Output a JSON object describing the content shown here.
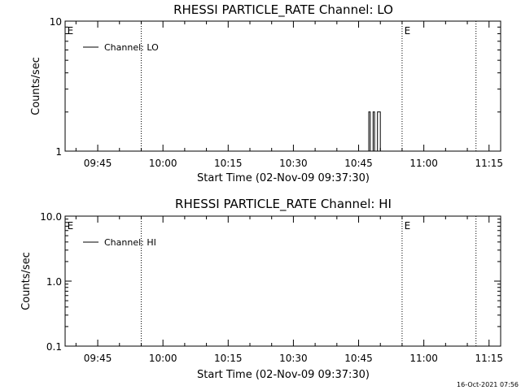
{
  "footer": {
    "timestamp": "16-Oct-2021 07:56"
  },
  "style": {
    "line_color": "#000000",
    "background": "#ffffff"
  },
  "chart_data": [
    {
      "type": "line",
      "title": "RHESSI PARTICLE_RATE Channel: LO",
      "xlabel": "Start Time (02-Nov-09 09:37:30)",
      "ylabel": "Counts/sec",
      "x_axis_unit": "time-of-day",
      "xlim": [
        "09:37:30",
        "11:17:40"
      ],
      "x_ticks": [
        "09:45",
        "10:00",
        "10:15",
        "10:30",
        "10:45",
        "11:00",
        "11:15"
      ],
      "y_scale": "log",
      "ylim": [
        1,
        10
      ],
      "y_ticks": [
        "1",
        "10"
      ],
      "legend": {
        "position": "top-left",
        "entries": [
          "Channel: LO"
        ]
      },
      "event_lines": [
        "09:55:00",
        "10:55:00",
        "11:12:00"
      ],
      "markers": [
        {
          "label": "E",
          "time": "09:38:00"
        },
        {
          "label": "E",
          "time": "10:55:30"
        }
      ],
      "series": [
        {
          "name": "Channel: LO",
          "x": [
            "10:47:00",
            "10:47:20",
            "10:47:40",
            "10:48:00",
            "10:48:20",
            "10:48:40",
            "10:49:00",
            "10:49:20",
            "10:49:40",
            "10:50:00"
          ],
          "y": [
            1,
            2,
            1,
            1,
            2,
            1,
            1,
            2,
            2,
            1
          ]
        }
      ]
    },
    {
      "type": "line",
      "title": "RHESSI PARTICLE_RATE Channel: HI",
      "xlabel": "Start Time (02-Nov-09 09:37:30)",
      "ylabel": "Counts/sec",
      "x_axis_unit": "time-of-day",
      "xlim": [
        "09:37:30",
        "11:17:40"
      ],
      "x_ticks": [
        "09:45",
        "10:00",
        "10:15",
        "10:30",
        "10:45",
        "11:00",
        "11:15"
      ],
      "y_scale": "log",
      "ylim": [
        0.1,
        10
      ],
      "y_ticks": [
        "0.1",
        "1.0",
        "10.0"
      ],
      "legend": {
        "position": "top-left",
        "entries": [
          "Channel: HI"
        ]
      },
      "event_lines": [
        "09:55:00",
        "10:55:00",
        "11:12:00"
      ],
      "markers": [
        {
          "label": "E",
          "time": "09:38:00"
        },
        {
          "label": "E",
          "time": "10:55:30"
        }
      ],
      "series": [
        {
          "name": "Channel: HI",
          "x": [],
          "y": []
        }
      ]
    }
  ]
}
